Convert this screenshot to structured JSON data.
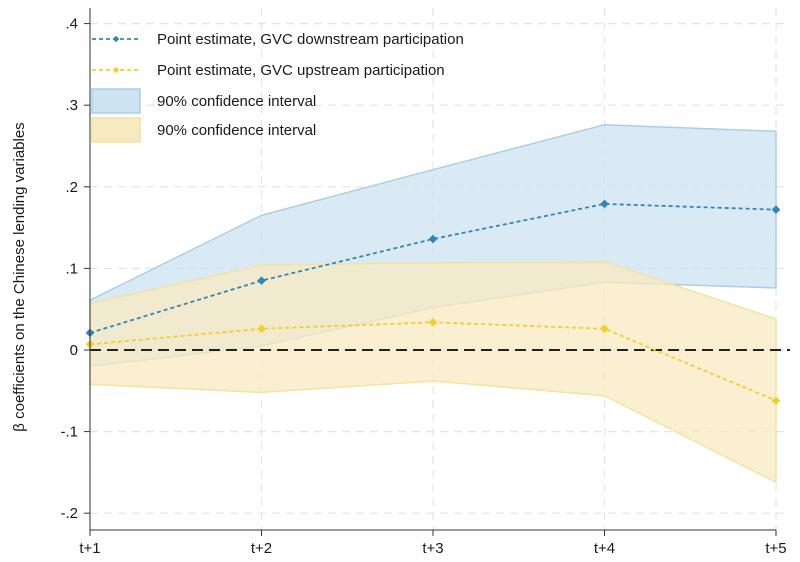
{
  "chart_data": {
    "type": "line",
    "title": "",
    "xlabel": "",
    "ylabel": "β coefficients on the Chinese lending variables",
    "categories": [
      "t+1",
      "t+2",
      "t+3",
      "t+4",
      "t+5"
    ],
    "y_ticks": [
      ".4",
      ".3",
      ".2",
      ".1",
      "0",
      "-.1",
      "-.2"
    ],
    "y_tick_values": [
      0.4,
      0.3,
      0.2,
      0.1,
      0.0,
      -0.1,
      -0.2
    ],
    "ylim": [
      -0.22,
      0.41
    ],
    "grid": true,
    "reference_line_y": 0,
    "legend_position": "top-left",
    "series": [
      {
        "name": "Point estimate, GVC downstream participation",
        "values": [
          0.021,
          0.085,
          0.136,
          0.179,
          0.172
        ],
        "ci_lower": [
          -0.02,
          0.005,
          0.052,
          0.083,
          0.076
        ],
        "ci_upper": [
          0.061,
          0.165,
          0.221,
          0.276,
          0.268
        ],
        "ci_name": "90% confidence interval",
        "line_color": "#2f86b8",
        "band_fill": "#cde3f1",
        "band_stroke": "#a9cfe6"
      },
      {
        "name": "Point estimate, GVC upstream participation",
        "values": [
          0.007,
          0.026,
          0.034,
          0.026,
          -0.062
        ],
        "ci_lower": [
          -0.042,
          -0.052,
          -0.038,
          -0.056,
          -0.162
        ],
        "ci_upper": [
          0.057,
          0.104,
          0.107,
          0.108,
          0.038
        ],
        "ci_name": "90% confidence interval",
        "line_color": "#f1cf2d",
        "band_fill": "#f8eac0",
        "band_stroke": "#f4e2a0"
      }
    ]
  }
}
